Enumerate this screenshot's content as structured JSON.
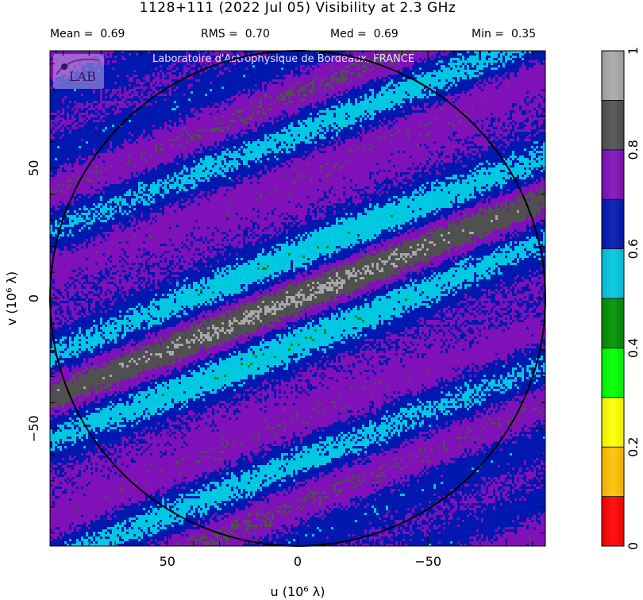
{
  "header": {
    "title": "1128+111   (2022 Jul 05)   Visibility at  2.3 GHz",
    "stats": [
      {
        "label": "Mean =",
        "value": "0.69"
      },
      {
        "label": "RMS =",
        "value": "0.70"
      },
      {
        "label": "Med =",
        "value": "0.69"
      },
      {
        "label": "Min =",
        "value": "0.35"
      }
    ]
  },
  "watermark": "Laboratoire d'Astrophysique de Bordeaux, FRANCE",
  "logo_text": "LAB",
  "chart_data": {
    "type": "heatmap",
    "xlabel": "u  (10⁶ λ)",
    "ylabel": "v  (10⁶ λ)",
    "xlim": [
      95,
      -95
    ],
    "ylim": [
      -95,
      95
    ],
    "xticks": [
      50,
      0,
      -50
    ],
    "yticks": [
      50,
      0,
      -50
    ],
    "xtick_labels": [
      "50",
      "0",
      "−50"
    ],
    "ytick_labels": [
      "50",
      "0",
      "−50"
    ],
    "circle_radius": 95,
    "colorbar": {
      "range": [
        0,
        1
      ],
      "ticks": [
        0,
        0.2,
        0.4,
        0.6,
        0.8,
        1
      ],
      "tick_labels": [
        "0",
        "0.2",
        "0.4",
        "0.6",
        "0.8",
        "1"
      ],
      "levels": [
        0,
        0.1,
        0.2,
        0.3,
        0.4,
        0.5,
        0.6,
        0.7,
        0.8,
        0.9,
        1.0
      ],
      "colors": [
        "#ff0000",
        "#ffc000",
        "#ffff00",
        "#00ff00",
        "#009000",
        "#00c8e0",
        "#0018b0",
        "#8010b8",
        "#505050",
        "#a8a8a8"
      ]
    },
    "field": {
      "stripe_slope_v_per_u": -0.4,
      "stripe_period": 38,
      "offset": 0.688,
      "core_amplitude": 0.175,
      "core_scale": 80,
      "fringe_amplitude": 0.05,
      "fringe_period": 24,
      "noise_amplitude": 0.06
    }
  }
}
